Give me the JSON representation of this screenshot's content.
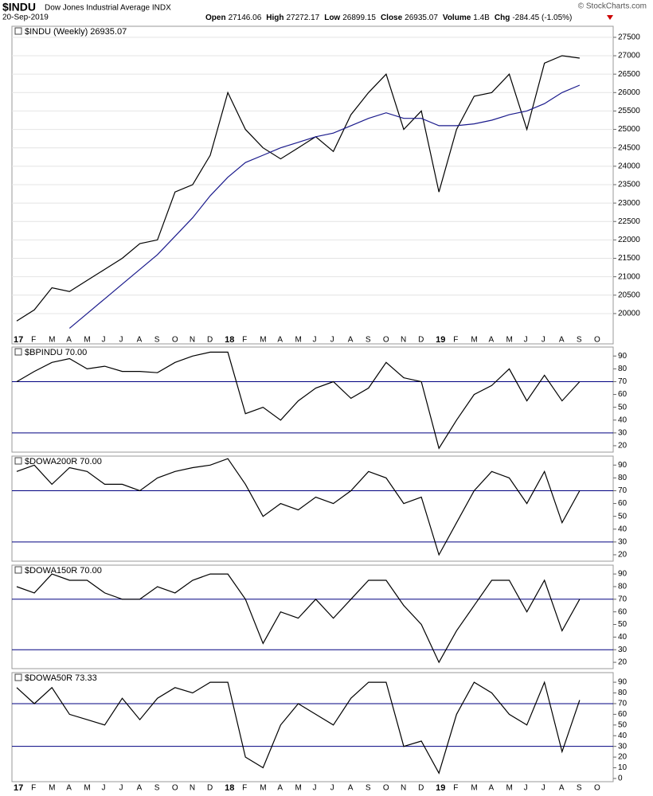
{
  "header": {
    "symbol": "$INDU",
    "name": "Dow Jones Industrial Average INDX",
    "date": "20-Sep-2019",
    "quote": [
      {
        "label": "Open",
        "value": "27146.06"
      },
      {
        "label": "High",
        "value": "27272.17"
      },
      {
        "label": "Low",
        "value": "26899.15"
      },
      {
        "label": "Close",
        "value": "26935.07"
      },
      {
        "label": "Volume",
        "value": "1.4B"
      },
      {
        "label": "Chg",
        "value": "-284.45 (-1.05%)"
      }
    ],
    "credit": "© StockCharts.com"
  },
  "chart_data": [
    {
      "type": "line",
      "categories": [
        "17",
        "F",
        "M",
        "A",
        "M",
        "J",
        "J",
        "A",
        "S",
        "O",
        "N",
        "D",
        "18",
        "F",
        "M",
        "A",
        "M",
        "J",
        "J",
        "A",
        "S",
        "O",
        "N",
        "D",
        "19",
        "F",
        "M",
        "A",
        "M",
        "J",
        "J",
        "A",
        "S",
        "O"
      ],
      "series": [
        {
          "name": "$INDU (Weekly) 26935.07",
          "color": "#000000",
          "values": [
            19800,
            20100,
            20700,
            20600,
            20900,
            21200,
            21500,
            21900,
            22000,
            23300,
            23500,
            24300,
            26000,
            25000,
            24500,
            24200,
            24500,
            24800,
            24400,
            25400,
            26000,
            26500,
            25000,
            25500,
            23300,
            25000,
            25900,
            26000,
            26500,
            25000,
            26800,
            27000,
            26935,
            null
          ]
        },
        {
          "color": "#1a1a8c",
          "values": [
            null,
            null,
            null,
            19600,
            20000,
            20400,
            20800,
            21200,
            21600,
            22100,
            22600,
            23200,
            23700,
            24100,
            24300,
            24500,
            24650,
            24800,
            24900,
            25100,
            25300,
            25450,
            25300,
            25300,
            25100,
            25100,
            25150,
            25250,
            25400,
            25500,
            25700,
            26000,
            26200,
            null
          ]
        }
      ],
      "ylim": [
        19480,
        27800
      ],
      "yticks": [
        20000,
        20500,
        21000,
        21500,
        22000,
        22500,
        23000,
        23500,
        24000,
        24500,
        25000,
        25500,
        26000,
        26500,
        27000,
        27500
      ],
      "grid": true
    },
    {
      "type": "line",
      "series": [
        {
          "name": "$BPINDU 70.00",
          "color": "#000000",
          "values": [
            70,
            78,
            85,
            88,
            80,
            82,
            78,
            78,
            77,
            85,
            90,
            93,
            93,
            45,
            50,
            40,
            55,
            65,
            70,
            57,
            65,
            85,
            73,
            70,
            18,
            40,
            60,
            67,
            80,
            55,
            75,
            55,
            70,
            null
          ]
        }
      ],
      "ylim": [
        15,
        97
      ],
      "yticks": [
        20,
        30,
        40,
        50,
        60,
        70,
        80,
        90
      ],
      "hlines": [
        30,
        70
      ],
      "line_color": "#000080"
    },
    {
      "type": "line",
      "series": [
        {
          "name": "$DOWA200R 70.00",
          "color": "#000000",
          "values": [
            85,
            90,
            75,
            88,
            85,
            75,
            75,
            70,
            80,
            85,
            88,
            90,
            95,
            75,
            50,
            60,
            55,
            65,
            60,
            70,
            85,
            80,
            60,
            65,
            20,
            45,
            70,
            85,
            80,
            60,
            85,
            45,
            70,
            null
          ]
        }
      ],
      "ylim": [
        15,
        97
      ],
      "yticks": [
        20,
        30,
        40,
        50,
        60,
        70,
        80,
        90
      ],
      "hlines": [
        30,
        70
      ],
      "line_color": "#000080"
    },
    {
      "type": "line",
      "series": [
        {
          "name": "$DOWA150R 70.00",
          "color": "#000000",
          "values": [
            80,
            75,
            90,
            85,
            85,
            75,
            70,
            70,
            80,
            75,
            85,
            90,
            90,
            70,
            35,
            60,
            55,
            70,
            55,
            70,
            85,
            85,
            65,
            50,
            20,
            45,
            65,
            85,
            85,
            60,
            85,
            45,
            70,
            null
          ]
        }
      ],
      "ylim": [
        15,
        97
      ],
      "yticks": [
        20,
        30,
        40,
        50,
        60,
        70,
        80,
        90
      ],
      "hlines": [
        30,
        70
      ],
      "line_color": "#000080"
    },
    {
      "type": "line",
      "categories": [
        "17",
        "F",
        "M",
        "A",
        "M",
        "J",
        "J",
        "A",
        "S",
        "O",
        "N",
        "D",
        "18",
        "F",
        "M",
        "A",
        "M",
        "J",
        "J",
        "A",
        "S",
        "O",
        "N",
        "D",
        "19",
        "F",
        "M",
        "A",
        "M",
        "J",
        "J",
        "A",
        "S",
        "O"
      ],
      "series": [
        {
          "name": "$DOWA50R 73.33",
          "color": "#000000",
          "values": [
            85,
            70,
            85,
            60,
            55,
            50,
            75,
            55,
            75,
            85,
            80,
            90,
            90,
            20,
            10,
            50,
            70,
            60,
            50,
            75,
            90,
            90,
            30,
            35,
            5,
            60,
            90,
            80,
            60,
            50,
            90,
            25,
            73.33,
            null
          ]
        }
      ],
      "ylim": [
        -3,
        99
      ],
      "yticks": [
        0,
        10,
        20,
        30,
        40,
        50,
        60,
        70,
        80,
        90
      ],
      "hlines": [
        30,
        70
      ],
      "line_color": "#000080"
    }
  ]
}
